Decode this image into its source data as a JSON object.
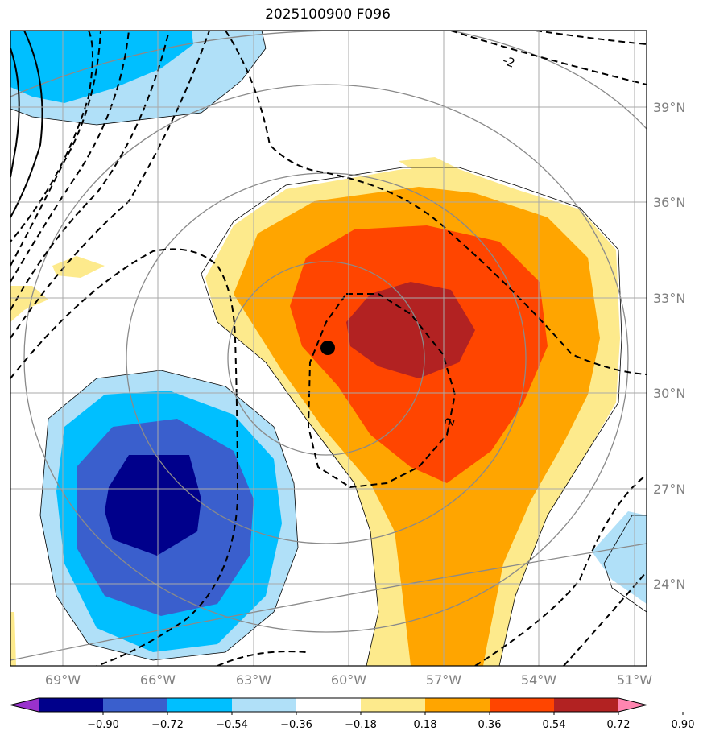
{
  "title": "2025100900 F096",
  "map": {
    "lon_labels": [
      "69°W",
      "66°W",
      "63°W",
      "60°W",
      "57°W",
      "54°W",
      "51°W"
    ],
    "lat_labels": [
      "39°N",
      "36°N",
      "33°N",
      "30°N",
      "27°N",
      "24°N"
    ],
    "contour_labels": [
      "-2",
      "-2"
    ],
    "center_marker": {
      "lon": -60.7,
      "lat": 31.4
    }
  },
  "colorbar": {
    "ticks": [
      "−0.90",
      "−0.72",
      "−0.54",
      "−0.36",
      "−0.18",
      "0.18",
      "0.36",
      "0.54",
      "0.72",
      "0.90"
    ],
    "colors": [
      "#9932cc",
      "#00008b",
      "#3a5fcd",
      "#00bfff",
      "#b0e0f8",
      "#ffffff",
      "#fdea8c",
      "#ffa500",
      "#ff4500",
      "#b22222",
      "#ff85b0"
    ]
  }
}
